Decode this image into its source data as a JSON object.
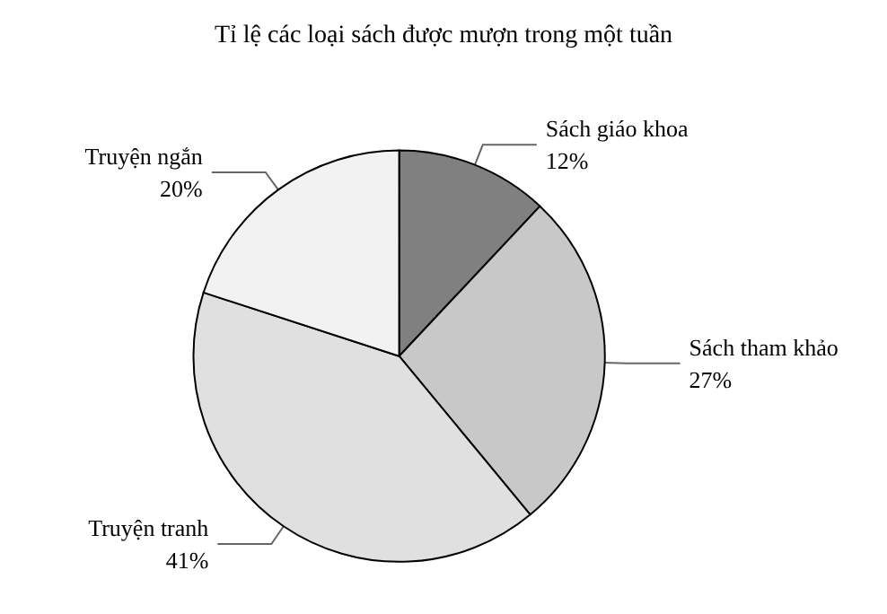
{
  "chart_data": {
    "type": "pie",
    "title": "Tỉ lệ các loại sách được mượn trong một tuần",
    "categories": [
      "Sách giáo khoa",
      "Sách tham khảo",
      "Truyện tranh",
      "Truyện ngắn"
    ],
    "values": [
      12,
      27,
      41,
      20
    ],
    "colors": [
      "#808080",
      "#c8c8c8",
      "#e0e0e0",
      "#f2f2f2"
    ],
    "value_labels": [
      "12%",
      "27%",
      "41%",
      "20%"
    ],
    "legend": false
  }
}
